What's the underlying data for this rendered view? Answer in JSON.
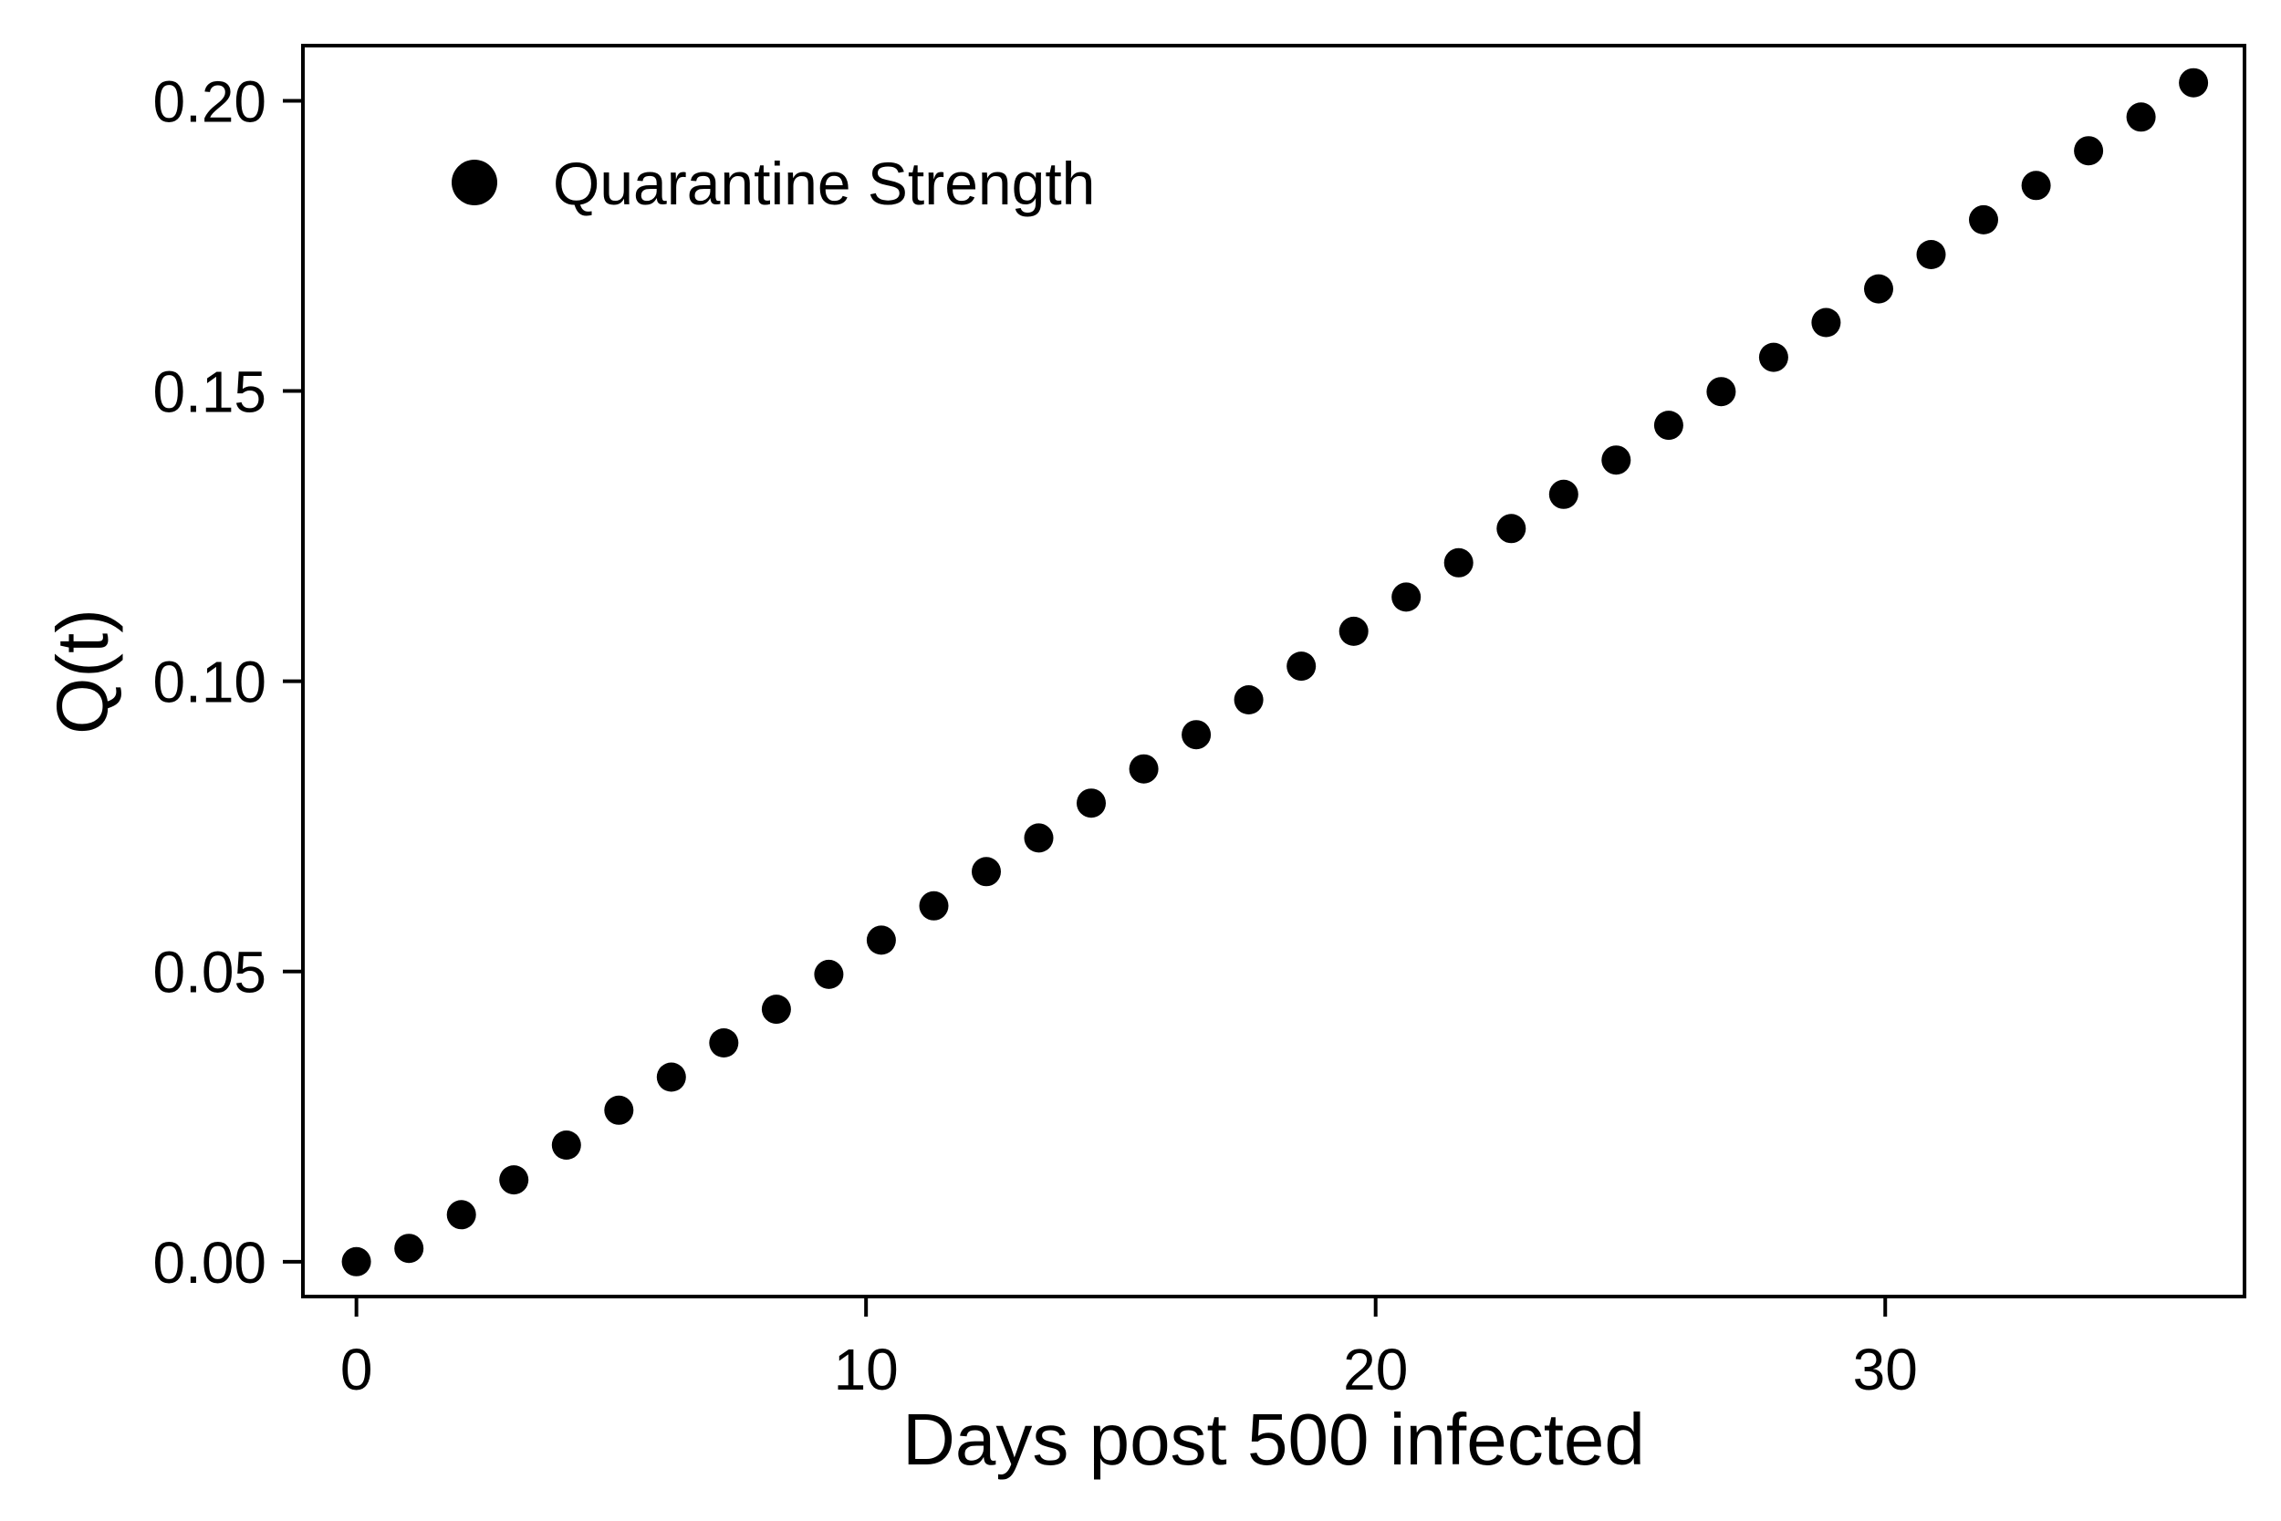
{
  "chart_data": {
    "type": "scatter",
    "xlabel": "Days post 500 infected",
    "ylabel": "Q(t)",
    "xlim": [
      -1.05,
      37.05
    ],
    "ylim": [
      -0.006,
      0.2095
    ],
    "x_ticks": [
      {
        "value": 0,
        "label": "0"
      },
      {
        "value": 10,
        "label": "10"
      },
      {
        "value": 20,
        "label": "20"
      },
      {
        "value": 30,
        "label": "30"
      }
    ],
    "y_ticks": [
      {
        "value": 0.0,
        "label": "0.00"
      },
      {
        "value": 0.05,
        "label": "0.05"
      },
      {
        "value": 0.1,
        "label": "0.10"
      },
      {
        "value": 0.15,
        "label": "0.15"
      },
      {
        "value": 0.2,
        "label": "0.20"
      }
    ],
    "grid": false,
    "legend_position": "top-left",
    "series": [
      {
        "name": "Quarantine Strength",
        "marker": "filled-circle",
        "color": "#000000",
        "x": [
          0,
          1.03,
          2.06,
          3.09,
          4.12,
          5.15,
          6.18,
          7.21,
          8.24,
          9.27,
          10.3,
          11.33,
          12.36,
          13.39,
          14.42,
          15.45,
          16.48,
          17.51,
          18.54,
          19.57,
          20.6,
          21.63,
          22.66,
          23.69,
          24.72,
          25.75,
          26.78,
          27.81,
          28.84,
          29.87,
          30.9,
          31.93,
          32.96,
          33.99,
          35.02,
          36.05
        ],
        "y": [
          0.0,
          0.0023,
          0.0081,
          0.0141,
          0.0201,
          0.0261,
          0.0318,
          0.0377,
          0.0435,
          0.0495,
          0.0554,
          0.0613,
          0.0672,
          0.073,
          0.079,
          0.0849,
          0.0908,
          0.0968,
          0.1026,
          0.1086,
          0.1145,
          0.1204,
          0.1263,
          0.1322,
          0.1381,
          0.1441,
          0.1499,
          0.1558,
          0.1618,
          0.1676,
          0.1735,
          0.1795,
          0.1854,
          0.1914,
          0.1972,
          0.2031
        ]
      }
    ]
  }
}
